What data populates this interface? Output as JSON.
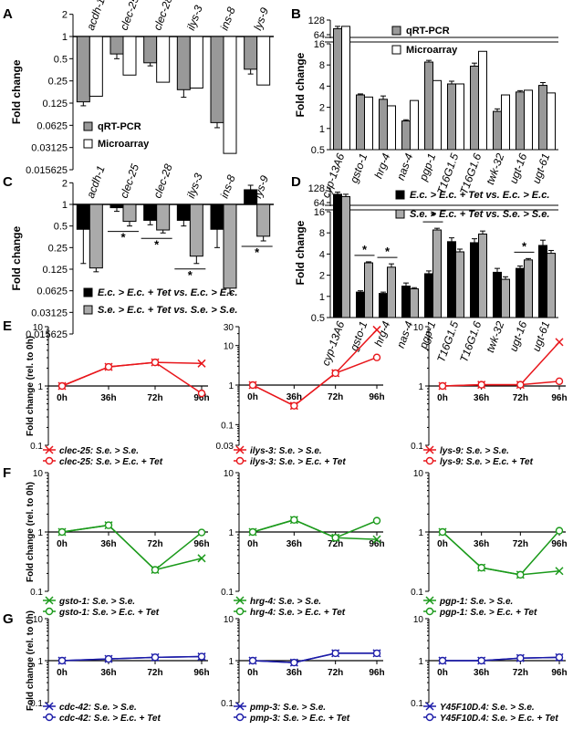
{
  "panel_letters": {
    "A": "A",
    "B": "B",
    "C": "C",
    "D": "D",
    "E": "E",
    "F": "F",
    "G": "G"
  },
  "colors": {
    "qrt": "#999999",
    "micro": "#ffffff",
    "ec": "#000000",
    "se": "#aaaaaa",
    "red": "#e8161b",
    "green": "#1b9a1b",
    "blue": "#1c1ca8"
  },
  "chart_data": [
    {
      "id": "A",
      "type": "bar",
      "scale": "log2",
      "ylabel": "Fold change",
      "yticks": [
        "2",
        "1",
        "0.5",
        "0.25",
        "0.125",
        "0.0625",
        "0.03125",
        "0.015625"
      ],
      "ylim": [
        0.015625,
        2
      ],
      "categories": [
        "acdh-1",
        "clec-25",
        "clec-28",
        "ilys-3",
        "ins-8",
        "lys-9"
      ],
      "series": [
        {
          "name": "qRT-PCR",
          "values": [
            0.13,
            0.58,
            0.44,
            0.19,
            0.068,
            0.36
          ],
          "err": [
            0.015,
            0.08,
            0.04,
            0.04,
            0.01,
            0.05
          ]
        },
        {
          "name": "Microarray",
          "values": [
            0.155,
            0.3,
            0.24,
            0.2,
            0.026,
            0.22
          ]
        }
      ],
      "legend_position": "bottom-left"
    },
    {
      "id": "B",
      "type": "bar",
      "scale": "log2",
      "broken_axis": true,
      "ylabel": "Fold change",
      "yticks_low": [
        "0.5",
        "1",
        "2",
        "4",
        "8",
        "16"
      ],
      "yticks_high": [
        "64",
        "128"
      ],
      "categories": [
        "cyp-13A6",
        "gsto-1",
        "hrg-4",
        "nas-4",
        "pgp-1",
        "T16G1.5",
        "T16G1.6",
        "twk-32",
        "ugt-16",
        "ugt-61"
      ],
      "series": [
        {
          "name": "qRT-PCR",
          "values": [
            85,
            3.0,
            2.6,
            1.28,
            8.8,
            4.3,
            7.7,
            1.75,
            3.3,
            4.1
          ],
          "err": [
            10,
            0.1,
            0.3,
            0.05,
            0.5,
            0.4,
            0.8,
            0.15,
            0.15,
            0.4
          ]
        },
        {
          "name": "Microarray",
          "values": [
            95,
            2.8,
            2.1,
            2.5,
            4.8,
            4.3,
            12.5,
            3.0,
            3.5,
            3.2
          ]
        }
      ],
      "legend_position": "top-right"
    },
    {
      "id": "C",
      "type": "bar",
      "scale": "log2",
      "ylabel": "Fold change",
      "yticks": [
        "2",
        "1",
        "0.5",
        "0.25",
        "0.125",
        "0.0625",
        "0.03125",
        "0.015625"
      ],
      "ylim": [
        0.015625,
        2
      ],
      "categories": [
        "acdh-1",
        "clec-25",
        "clec-28",
        "ilys-3",
        "ins-8",
        "lys-9"
      ],
      "series": [
        {
          "name": "E.c. > E.c. + Tet vs. E.c. > E.c.",
          "values": [
            0.45,
            0.9,
            0.6,
            0.6,
            0.45,
            1.6
          ],
          "err": [
            0.3,
            0.1,
            0.08,
            0.1,
            0.2,
            0.25
          ]
        },
        {
          "name": "S.e. > E.c. + Tet vs. S.e. > S.e.",
          "values": [
            0.13,
            0.58,
            0.44,
            0.19,
            0.068,
            0.36
          ],
          "err": [
            0.015,
            0.08,
            0.04,
            0.04,
            0.01,
            0.05
          ]
        }
      ],
      "significance": [
        "clec-25",
        "clec-28",
        "ilys-3",
        "lys-9"
      ],
      "sig_mark": "*",
      "legend_position": "bottom-left"
    },
    {
      "id": "D",
      "type": "bar",
      "scale": "log2",
      "broken_axis": true,
      "ylabel": "Fold change",
      "yticks_low": [
        "0.5",
        "1",
        "2",
        "4",
        "8",
        "16"
      ],
      "yticks_high": [
        "64",
        "128"
      ],
      "categories": [
        "cyp-13A6",
        "gsto-1",
        "hrg-4",
        "nas-4",
        "pgp-1",
        "T16G1.5",
        "T16G1.6",
        "twk-32",
        "ugt-16",
        "ugt-61"
      ],
      "series": [
        {
          "name": "E.c. > E.c. + Tet vs. E.c. > E.c.",
          "values": [
            95,
            1.15,
            1.1,
            1.4,
            2.1,
            6.0,
            5.8,
            2.2,
            2.5,
            5.3
          ],
          "err": [
            10,
            0.05,
            0.05,
            0.15,
            0.2,
            0.8,
            0.8,
            0.3,
            0.2,
            1.0
          ]
        },
        {
          "name": "S.e. > E.c. + Tet vs. S.e. > S.e.",
          "values": [
            85,
            3.0,
            2.6,
            1.28,
            8.8,
            4.3,
            7.7,
            1.75,
            3.3,
            4.1
          ],
          "err": [
            10,
            0.1,
            0.3,
            0.05,
            0.5,
            0.4,
            0.8,
            0.15,
            0.15,
            0.4
          ]
        }
      ],
      "significance": [
        "gsto-1",
        "hrg-4",
        "pgp-1",
        "ugt-16"
      ],
      "sig_mark": "*",
      "legend_position": "top-right"
    },
    {
      "id": "E1",
      "type": "line",
      "ylabel": "Fold change (rel. to 0h)",
      "x": [
        "0h",
        "36h",
        "72h",
        "96h"
      ],
      "yticks": [
        "10",
        "1",
        "0.1"
      ],
      "ylim": [
        0.1,
        10
      ],
      "color": "red",
      "series": [
        {
          "name": "clec-25: S.e. > S.e.",
          "marker": "x",
          "values": [
            1,
            2.1,
            2.5,
            2.4
          ]
        },
        {
          "name": "clec-25: S.e. > E.c. + Tet",
          "marker": "o",
          "values": [
            1,
            2.1,
            2.5,
            0.75
          ]
        }
      ]
    },
    {
      "id": "E2",
      "type": "line",
      "x": [
        "0h",
        "36h",
        "72h",
        "96h"
      ],
      "yticks": [
        "30",
        "10",
        "1",
        "0.1",
        "0.03"
      ],
      "ylim": [
        0.03,
        30
      ],
      "color": "red",
      "series": [
        {
          "name": "ilys-3: S.e. > S.e.",
          "marker": "x",
          "values": [
            1,
            0.3,
            2.0,
            25
          ]
        },
        {
          "name": "ilys-3: S.e. > E.c. + Tet",
          "marker": "o",
          "values": [
            1,
            0.3,
            2.0,
            5
          ]
        }
      ]
    },
    {
      "id": "E3",
      "type": "line",
      "x": [
        "0h",
        "36h",
        "72h",
        "96h"
      ],
      "yticks": [
        "10",
        "1",
        "0.1"
      ],
      "ylim": [
        0.1,
        10
      ],
      "color": "red",
      "series": [
        {
          "name": "lys-9: S.e. > S.e.",
          "marker": "x",
          "values": [
            1,
            1.05,
            1.05,
            5.5
          ]
        },
        {
          "name": "lys-9: S.e. > E.c. + Tet",
          "marker": "o",
          "values": [
            1,
            1.05,
            1.05,
            1.2
          ]
        }
      ]
    },
    {
      "id": "F1",
      "type": "line",
      "ylabel": "Fold change (rel. to 0h)",
      "x": [
        "0h",
        "36h",
        "72h",
        "96h"
      ],
      "yticks": [
        "10",
        "1",
        "0.1"
      ],
      "ylim": [
        0.1,
        10
      ],
      "color": "green",
      "series": [
        {
          "name": "gsto-1: S.e. > S.e.",
          "marker": "x",
          "values": [
            1,
            1.3,
            0.23,
            0.36
          ]
        },
        {
          "name": "gsto-1: S.e. > E.c. + Tet",
          "marker": "o",
          "values": [
            1,
            1.3,
            0.23,
            0.98
          ]
        }
      ]
    },
    {
      "id": "F2",
      "type": "line",
      "x": [
        "0h",
        "36h",
        "72h",
        "96h"
      ],
      "yticks": [
        "10",
        "1",
        "0.1"
      ],
      "ylim": [
        0.1,
        10
      ],
      "color": "green",
      "series": [
        {
          "name": "hrg-4: S.e. > S.e.",
          "marker": "x",
          "values": [
            1,
            1.6,
            0.8,
            0.75
          ]
        },
        {
          "name": "hrg-4: S.e. > E.c. + Tet",
          "marker": "o",
          "values": [
            1,
            1.6,
            0.8,
            1.55
          ]
        }
      ]
    },
    {
      "id": "F3",
      "type": "line",
      "x": [
        "0h",
        "36h",
        "72h",
        "96h"
      ],
      "yticks": [
        "10",
        "1",
        "0.1"
      ],
      "ylim": [
        0.1,
        10
      ],
      "color": "green",
      "series": [
        {
          "name": "pgp-1: S.e. > S.e.",
          "marker": "x",
          "values": [
            1,
            0.25,
            0.19,
            0.22
          ]
        },
        {
          "name": "pgp-1: S.e. > E.c. + Tet",
          "marker": "o",
          "values": [
            1,
            0.25,
            0.19,
            1.05
          ]
        }
      ]
    },
    {
      "id": "G1",
      "type": "line",
      "ylabel": "Fold change (rel. to 0h)",
      "x": [
        "0h",
        "36h",
        "72h",
        "96h"
      ],
      "yticks": [
        "10",
        "1",
        "0.1"
      ],
      "ylim": [
        0.1,
        10
      ],
      "color": "blue",
      "series": [
        {
          "name": "cdc-42: S.e. > S.e.",
          "marker": "x",
          "values": [
            1,
            1.1,
            1.2,
            1.25
          ]
        },
        {
          "name": "cdc-42: S.e. > E.c. + Tet",
          "marker": "o",
          "values": [
            1,
            1.1,
            1.2,
            1.25
          ]
        }
      ]
    },
    {
      "id": "G2",
      "type": "line",
      "x": [
        "0h",
        "36h",
        "72h",
        "96h"
      ],
      "yticks": [
        "10",
        "1",
        "0.1"
      ],
      "ylim": [
        0.1,
        10
      ],
      "color": "blue",
      "series": [
        {
          "name": "pmp-3: S.e. > S.e.",
          "marker": "x",
          "values": [
            1,
            0.9,
            1.5,
            1.5
          ]
        },
        {
          "name": "pmp-3: S.e. > E.c. + Tet",
          "marker": "o",
          "values": [
            1,
            0.9,
            1.5,
            1.5
          ]
        }
      ]
    },
    {
      "id": "G3",
      "type": "line",
      "x": [
        "0h",
        "36h",
        "72h",
        "96h"
      ],
      "yticks": [
        "10",
        "1",
        "0.1"
      ],
      "ylim": [
        0.1,
        10
      ],
      "color": "blue",
      "series": [
        {
          "name": "Y45F10D.4: S.e. > S.e.",
          "marker": "x",
          "values": [
            1,
            1.0,
            1.15,
            1.2
          ]
        },
        {
          "name": "Y45F10D.4: S.e. > E.c. + Tet",
          "marker": "o",
          "values": [
            1,
            1.0,
            1.15,
            1.2
          ]
        }
      ]
    }
  ]
}
